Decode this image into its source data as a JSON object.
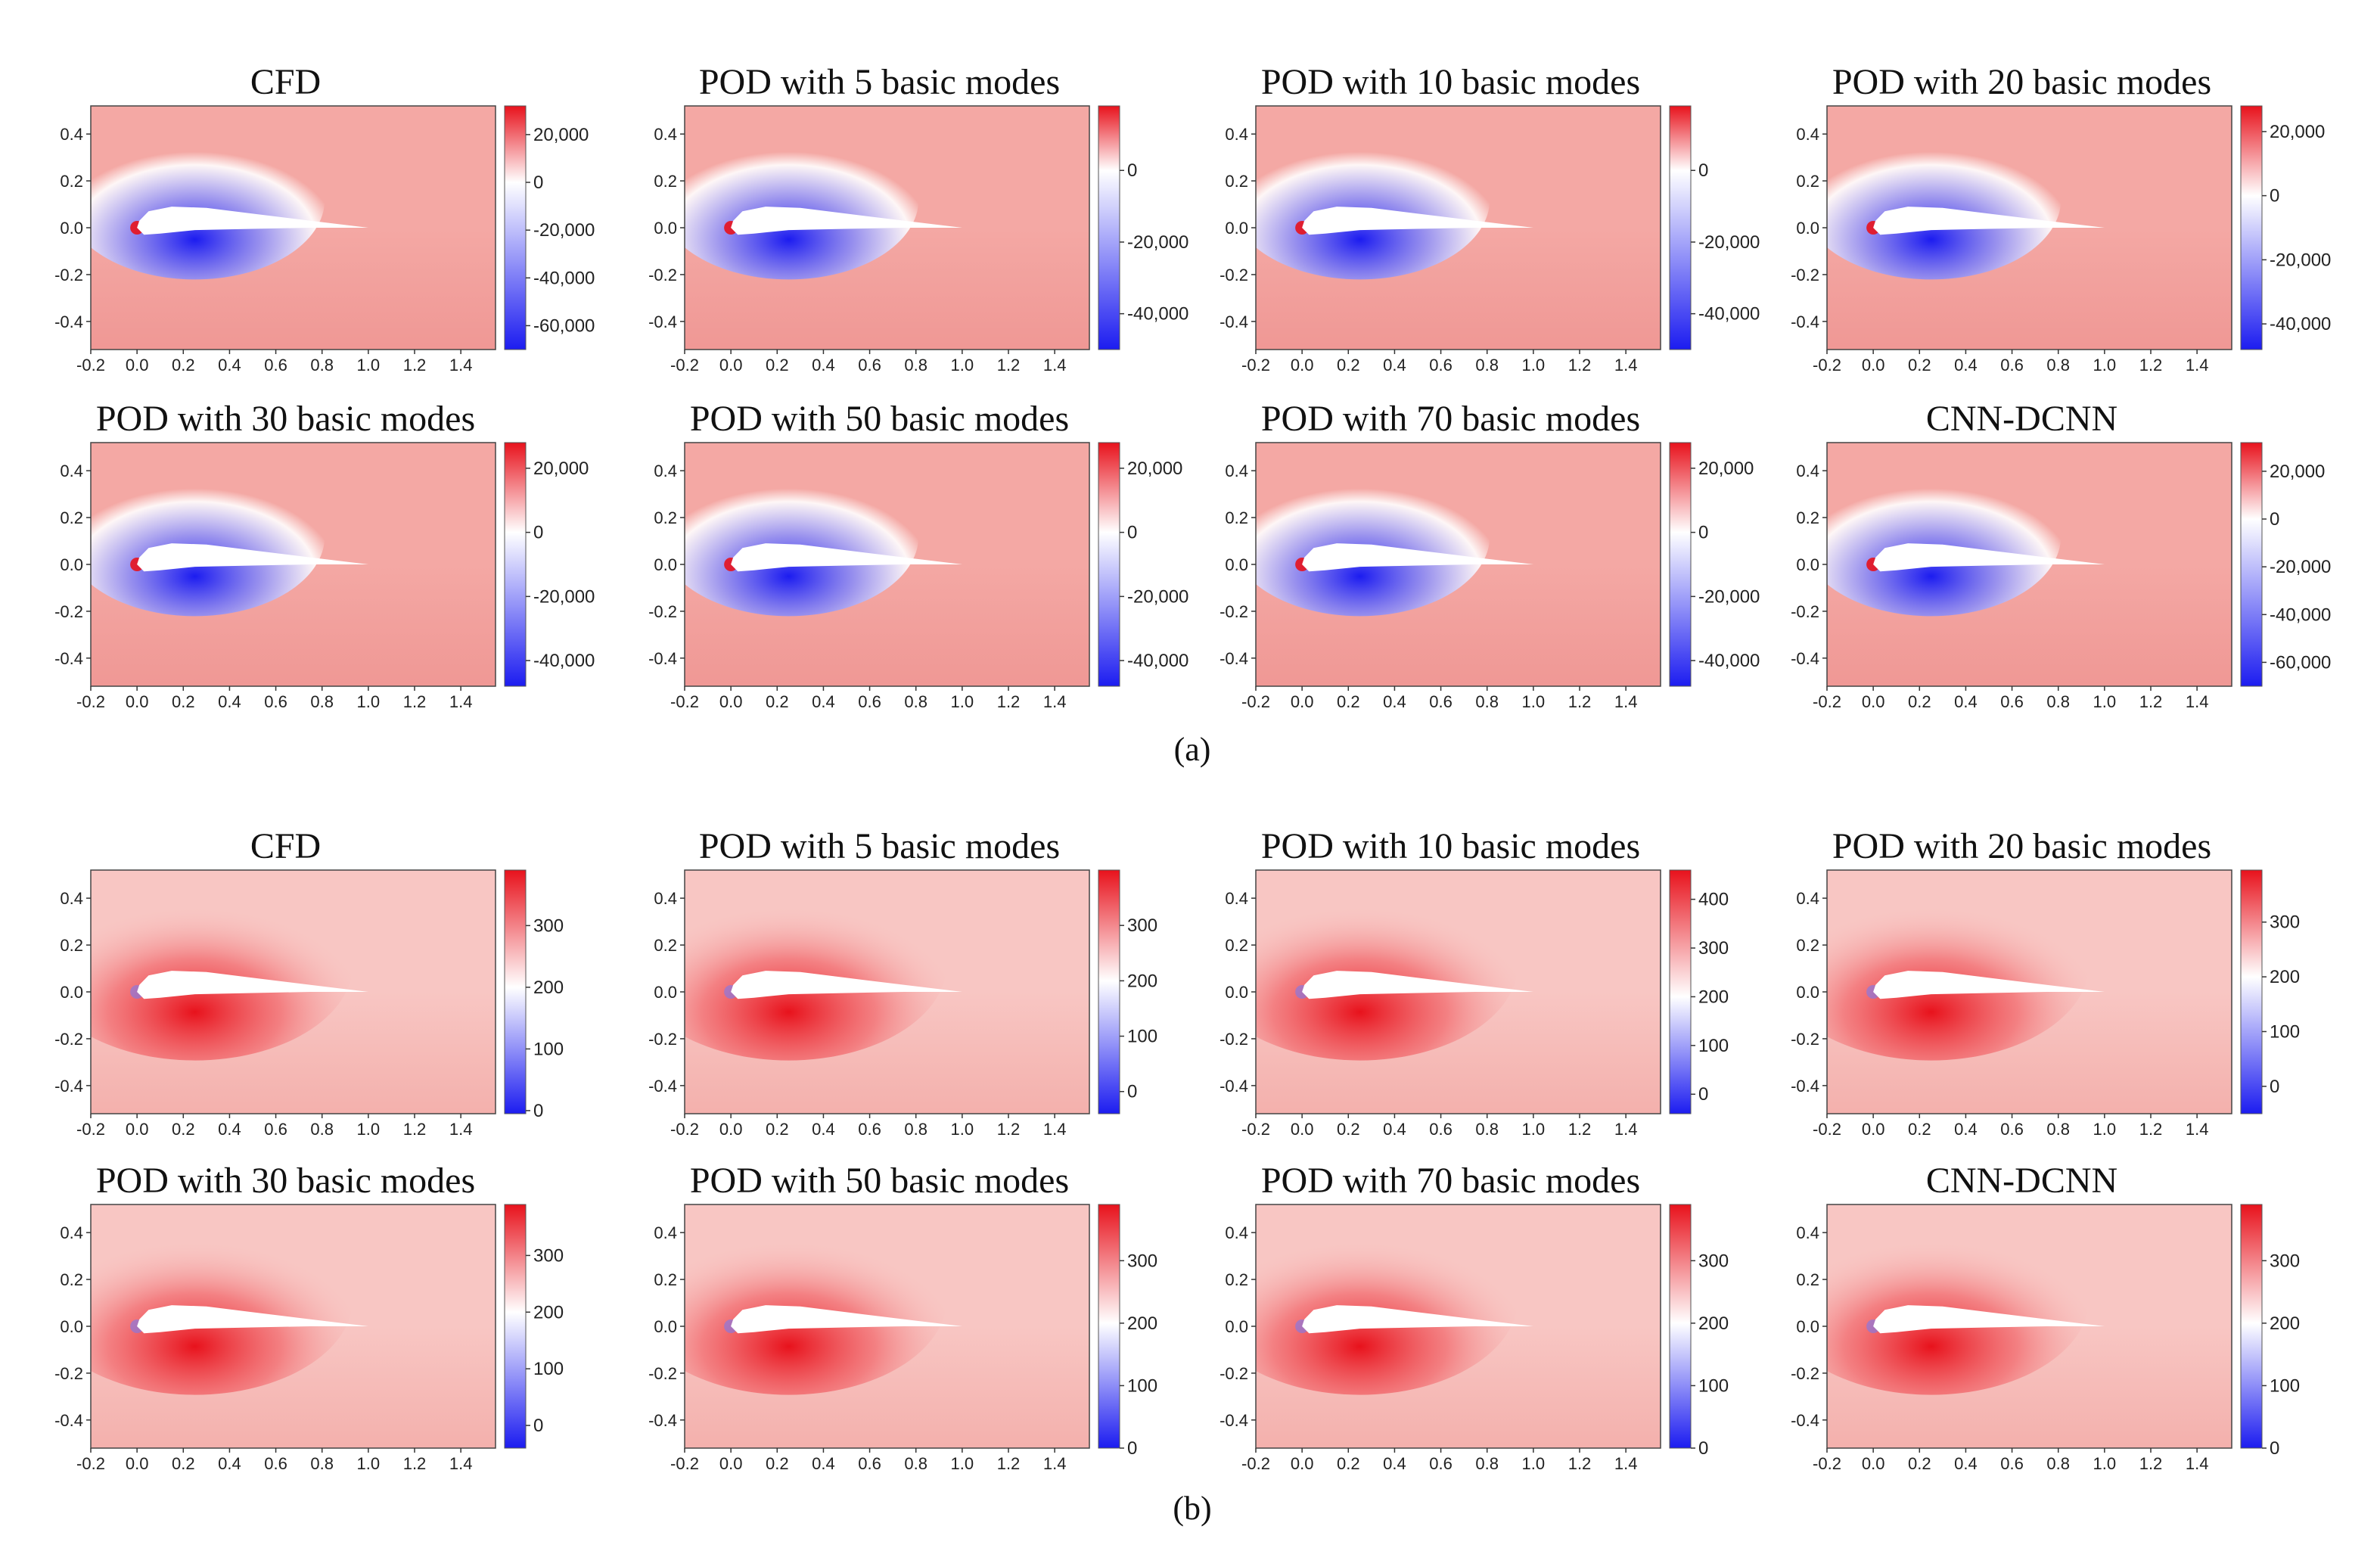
{
  "figure": {
    "sections": [
      {
        "label": "(a)",
        "colors": {
          "low": "#1c1cf0",
          "mid": "#ffffff",
          "high": "#e8121c",
          "field": "#f4a8a4",
          "field_dark": "#ef9693"
        },
        "panels": [
          {
            "title": "CFD",
            "cbar_ticks": [
              {
                "v": 20000,
                "t": "20,000"
              },
              {
                "v": 0,
                "t": "0"
              },
              {
                "v": -20000,
                "t": "-20,000"
              },
              {
                "v": -40000,
                "t": "-40,000"
              },
              {
                "v": -60000,
                "t": "-60,000"
              }
            ],
            "cbar_range": [
              -70000,
              32000
            ]
          },
          {
            "title": "POD with 5 basic modes",
            "cbar_ticks": [
              {
                "v": 0,
                "t": "0"
              },
              {
                "v": -20000,
                "t": "-20,000"
              },
              {
                "v": -40000,
                "t": "-40,000"
              }
            ],
            "cbar_range": [
              -50000,
              18000
            ]
          },
          {
            "title": "POD with 10 basic modes",
            "cbar_ticks": [
              {
                "v": 0,
                "t": "0"
              },
              {
                "v": -20000,
                "t": "-20,000"
              },
              {
                "v": -40000,
                "t": "-40,000"
              }
            ],
            "cbar_range": [
              -50000,
              18000
            ]
          },
          {
            "title": "POD with 20 basic modes",
            "cbar_ticks": [
              {
                "v": 20000,
                "t": "20,000"
              },
              {
                "v": 0,
                "t": "0"
              },
              {
                "v": -20000,
                "t": "-20,000"
              },
              {
                "v": -40000,
                "t": "-40,000"
              }
            ],
            "cbar_range": [
              -48000,
              28000
            ]
          },
          {
            "title": "POD with 30 basic modes",
            "cbar_ticks": [
              {
                "v": 20000,
                "t": "20,000"
              },
              {
                "v": 0,
                "t": "0"
              },
              {
                "v": -20000,
                "t": "-20,000"
              },
              {
                "v": -40000,
                "t": "-40,000"
              }
            ],
            "cbar_range": [
              -48000,
              28000
            ]
          },
          {
            "title": "POD with 50 basic modes",
            "cbar_ticks": [
              {
                "v": 20000,
                "t": "20,000"
              },
              {
                "v": 0,
                "t": "0"
              },
              {
                "v": -20000,
                "t": "-20,000"
              },
              {
                "v": -40000,
                "t": "-40,000"
              }
            ],
            "cbar_range": [
              -48000,
              28000
            ]
          },
          {
            "title": "POD with 70 basic modes",
            "cbar_ticks": [
              {
                "v": 20000,
                "t": "20,000"
              },
              {
                "v": 0,
                "t": "0"
              },
              {
                "v": -20000,
                "t": "-20,000"
              },
              {
                "v": -40000,
                "t": "-40,000"
              }
            ],
            "cbar_range": [
              -48000,
              28000
            ]
          },
          {
            "title": "CNN-DCNN",
            "cbar_ticks": [
              {
                "v": 20000,
                "t": "20,000"
              },
              {
                "v": 0,
                "t": "0"
              },
              {
                "v": -20000,
                "t": "-20,000"
              },
              {
                "v": -40000,
                "t": "-40,000"
              },
              {
                "v": -60000,
                "t": "-60,000"
              }
            ],
            "cbar_range": [
              -70000,
              32000
            ]
          }
        ]
      },
      {
        "label": "(b)",
        "colors": {
          "low": "#1c1cf0",
          "mid": "#ffffff",
          "high": "#e8121c",
          "field": "#f8c6c3",
          "field_dark": "#f3aeaa"
        },
        "panels": [
          {
            "title": "CFD",
            "cbar_ticks": [
              {
                "v": 300,
                "t": "300"
              },
              {
                "v": 200,
                "t": "200"
              },
              {
                "v": 100,
                "t": "100"
              },
              {
                "v": 0,
                "t": "0"
              }
            ],
            "cbar_range": [
              -5,
              390
            ]
          },
          {
            "title": "POD with 5 basic modes",
            "cbar_ticks": [
              {
                "v": 300,
                "t": "300"
              },
              {
                "v": 200,
                "t": "200"
              },
              {
                "v": 100,
                "t": "100"
              },
              {
                "v": 0,
                "t": "0"
              }
            ],
            "cbar_range": [
              -40,
              400
            ]
          },
          {
            "title": "POD with 10 basic modes",
            "cbar_ticks": [
              {
                "v": 400,
                "t": "400"
              },
              {
                "v": 300,
                "t": "300"
              },
              {
                "v": 200,
                "t": "200"
              },
              {
                "v": 100,
                "t": "100"
              },
              {
                "v": 0,
                "t": "0"
              }
            ],
            "cbar_range": [
              -40,
              460
            ]
          },
          {
            "title": "POD with 20 basic modes",
            "cbar_ticks": [
              {
                "v": 300,
                "t": "300"
              },
              {
                "v": 200,
                "t": "200"
              },
              {
                "v": 100,
                "t": "100"
              },
              {
                "v": 0,
                "t": "0"
              }
            ],
            "cbar_range": [
              -50,
              395
            ]
          },
          {
            "title": "POD with 30 basic modes",
            "cbar_ticks": [
              {
                "v": 300,
                "t": "300"
              },
              {
                "v": 200,
                "t": "200"
              },
              {
                "v": 100,
                "t": "100"
              },
              {
                "v": 0,
                "t": "0"
              }
            ],
            "cbar_range": [
              -40,
              390
            ]
          },
          {
            "title": "POD with 50 basic modes",
            "cbar_ticks": [
              {
                "v": 300,
                "t": "300"
              },
              {
                "v": 200,
                "t": "200"
              },
              {
                "v": 100,
                "t": "100"
              },
              {
                "v": 0,
                "t": "0"
              }
            ],
            "cbar_range": [
              0,
              390
            ]
          },
          {
            "title": "POD with 70 basic modes",
            "cbar_ticks": [
              {
                "v": 300,
                "t": "300"
              },
              {
                "v": 200,
                "t": "200"
              },
              {
                "v": 100,
                "t": "100"
              },
              {
                "v": 0,
                "t": "0"
              }
            ],
            "cbar_range": [
              0,
              390
            ]
          },
          {
            "title": "CNN-DCNN",
            "cbar_ticks": [
              {
                "v": 300,
                "t": "300"
              },
              {
                "v": 200,
                "t": "200"
              },
              {
                "v": 100,
                "t": "100"
              },
              {
                "v": 0,
                "t": "0"
              }
            ],
            "cbar_range": [
              0,
              390
            ]
          }
        ]
      }
    ]
  },
  "chart_data": {
    "type": "heatmap",
    "description_source": "flow field contour plots around an airfoil",
    "x_ticks": [
      "-0.2",
      "0.0",
      "0.2",
      "0.4",
      "0.6",
      "0.8",
      "1.0",
      "1.2",
      "1.4"
    ],
    "x_tick_values": [
      -0.2,
      0.0,
      0.2,
      0.4,
      0.6,
      0.8,
      1.0,
      1.2,
      1.4
    ],
    "xlim": [
      -0.2,
      1.55
    ],
    "y_ticks": [
      "0.4",
      "0.2",
      "0.0",
      "-0.2",
      "-0.4"
    ],
    "y_tick_values": [
      0.4,
      0.2,
      0.0,
      -0.2,
      -0.4
    ],
    "ylim": [
      -0.52,
      0.52
    ],
    "series": [
      {
        "name": "(a)",
        "panels": [
          "CFD",
          "POD with 5 basic modes",
          "POD with 10 basic modes",
          "POD with 20 basic modes",
          "POD with 30 basic modes",
          "POD with 50 basic modes",
          "POD with 70 basic modes",
          "CNN-DCNN"
        ]
      },
      {
        "name": "(b)",
        "panels": [
          "CFD",
          "POD with 5 basic modes",
          "POD with 10 basic modes",
          "POD with 20 basic modes",
          "POD with 30 basic modes",
          "POD with 50 basic modes",
          "POD with 70 basic modes",
          "CNN-DCNN"
        ]
      }
    ]
  }
}
